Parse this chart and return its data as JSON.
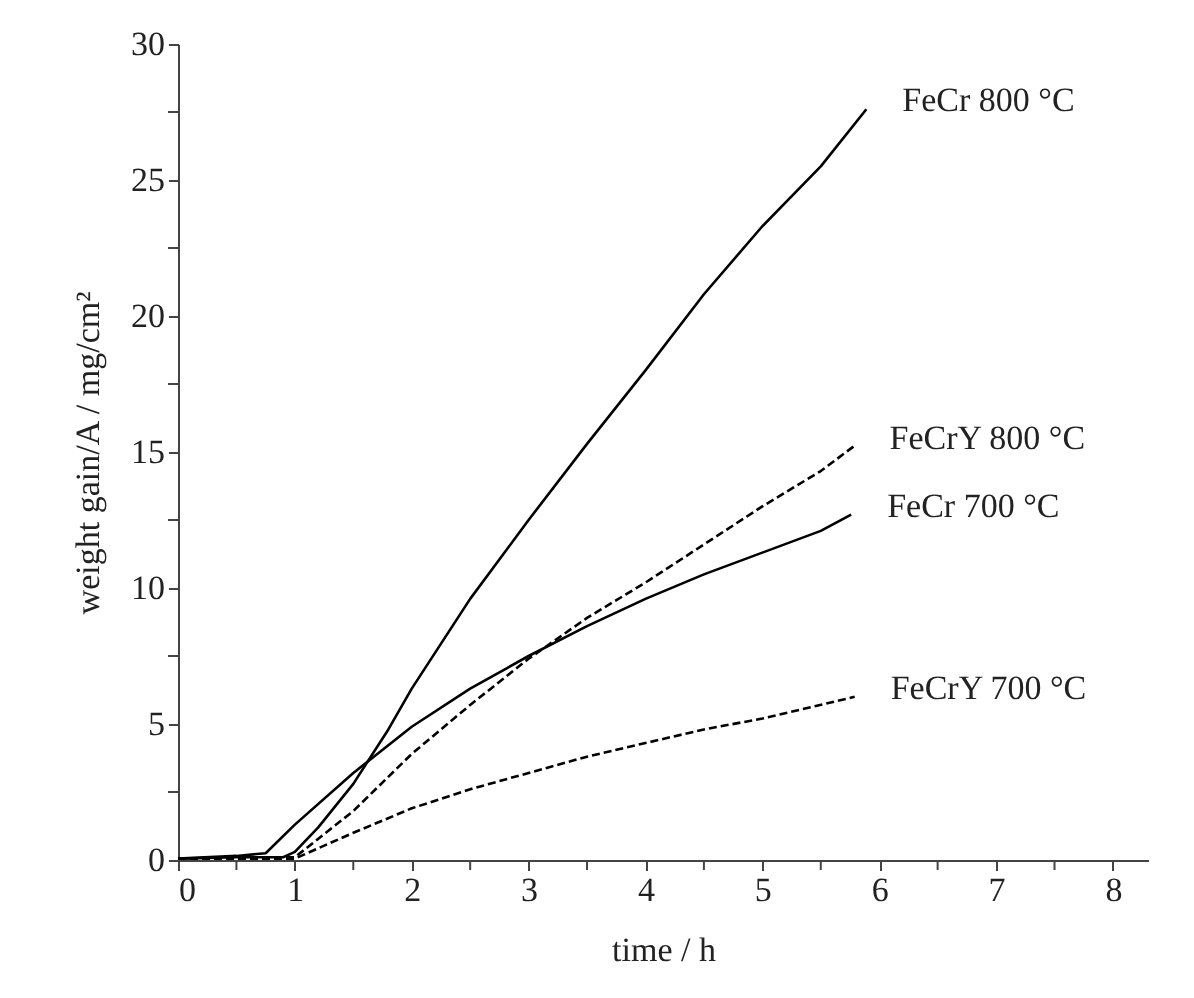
{
  "chart_data": {
    "type": "line",
    "xlabel": "time / h",
    "ylabel": "weight gain/A / mg/cm²",
    "xlim": [
      0,
      8.3
    ],
    "ylim": [
      0,
      30
    ],
    "xticks": [
      0,
      {
        "value": 0.5,
        "label": null
      },
      1,
      {
        "value": 1.5,
        "label": null
      },
      2,
      {
        "value": 2.5,
        "label": null
      },
      3,
      {
        "value": 3.5,
        "label": null
      },
      4,
      {
        "value": 4.5,
        "label": null
      },
      5,
      {
        "value": 5.5,
        "label": null
      },
      6,
      {
        "value": 6.5,
        "label": null
      },
      7,
      {
        "value": 7.5,
        "label": null
      },
      8
    ],
    "yticks": [
      0,
      {
        "value": 2.5,
        "label": null
      },
      5,
      {
        "value": 7.5,
        "label": null
      },
      10,
      {
        "value": 12.5,
        "label": null
      },
      15,
      {
        "value": 17.5,
        "label": null
      },
      20,
      {
        "value": 22.5,
        "label": null
      },
      25,
      {
        "value": 27.5,
        "label": null
      },
      30
    ],
    "grid": false,
    "marker": "none",
    "series": [
      {
        "name": "FeCr 800 °C",
        "color": "#000000",
        "line_style": "solid",
        "x": [
          0,
          0.5,
          0.9,
          1.0,
          1.2,
          1.5,
          1.8,
          2,
          2.5,
          3,
          3.5,
          4,
          4.5,
          5,
          5.5,
          5.89
        ],
        "values": [
          0.05,
          0.1,
          0.1,
          0.3,
          1.2,
          2.8,
          4.8,
          6.3,
          9.6,
          12.5,
          15.3,
          18,
          20.8,
          23.3,
          25.5,
          27.6
        ]
      },
      {
        "name": "FeCrY 800 °C",
        "color": "#000000",
        "line_style": "dashed",
        "x": [
          0,
          0.5,
          1.0,
          1.5,
          2,
          2.5,
          3,
          3.5,
          4,
          4.5,
          5,
          5.5,
          5.78
        ],
        "values": [
          0.05,
          0.1,
          0.1,
          1.8,
          3.9,
          5.7,
          7.4,
          8.9,
          10.2,
          11.6,
          13.0,
          14.3,
          15.2
        ]
      },
      {
        "name": "FeCr 700 °C",
        "color": "#000000",
        "line_style": "solid",
        "x": [
          0,
          0.5,
          0.75,
          1,
          1.5,
          2,
          2.5,
          3,
          3.5,
          4,
          4.5,
          5,
          5.5,
          5.76
        ],
        "values": [
          0.05,
          0.15,
          0.25,
          1.3,
          3.2,
          4.9,
          6.3,
          7.5,
          8.6,
          9.6,
          10.5,
          11.3,
          12.1,
          12.7
        ]
      },
      {
        "name": "FeCrY 700 °C",
        "color": "#000000",
        "line_style": "dashed",
        "x": [
          0,
          0.5,
          1.0,
          1.5,
          2,
          2.5,
          3,
          3.5,
          4,
          4.5,
          5,
          5.79
        ],
        "values": [
          0.05,
          0.05,
          0.05,
          1.0,
          1.9,
          2.6,
          3.2,
          3.8,
          4.3,
          4.8,
          5.2,
          6.0
        ]
      }
    ]
  }
}
